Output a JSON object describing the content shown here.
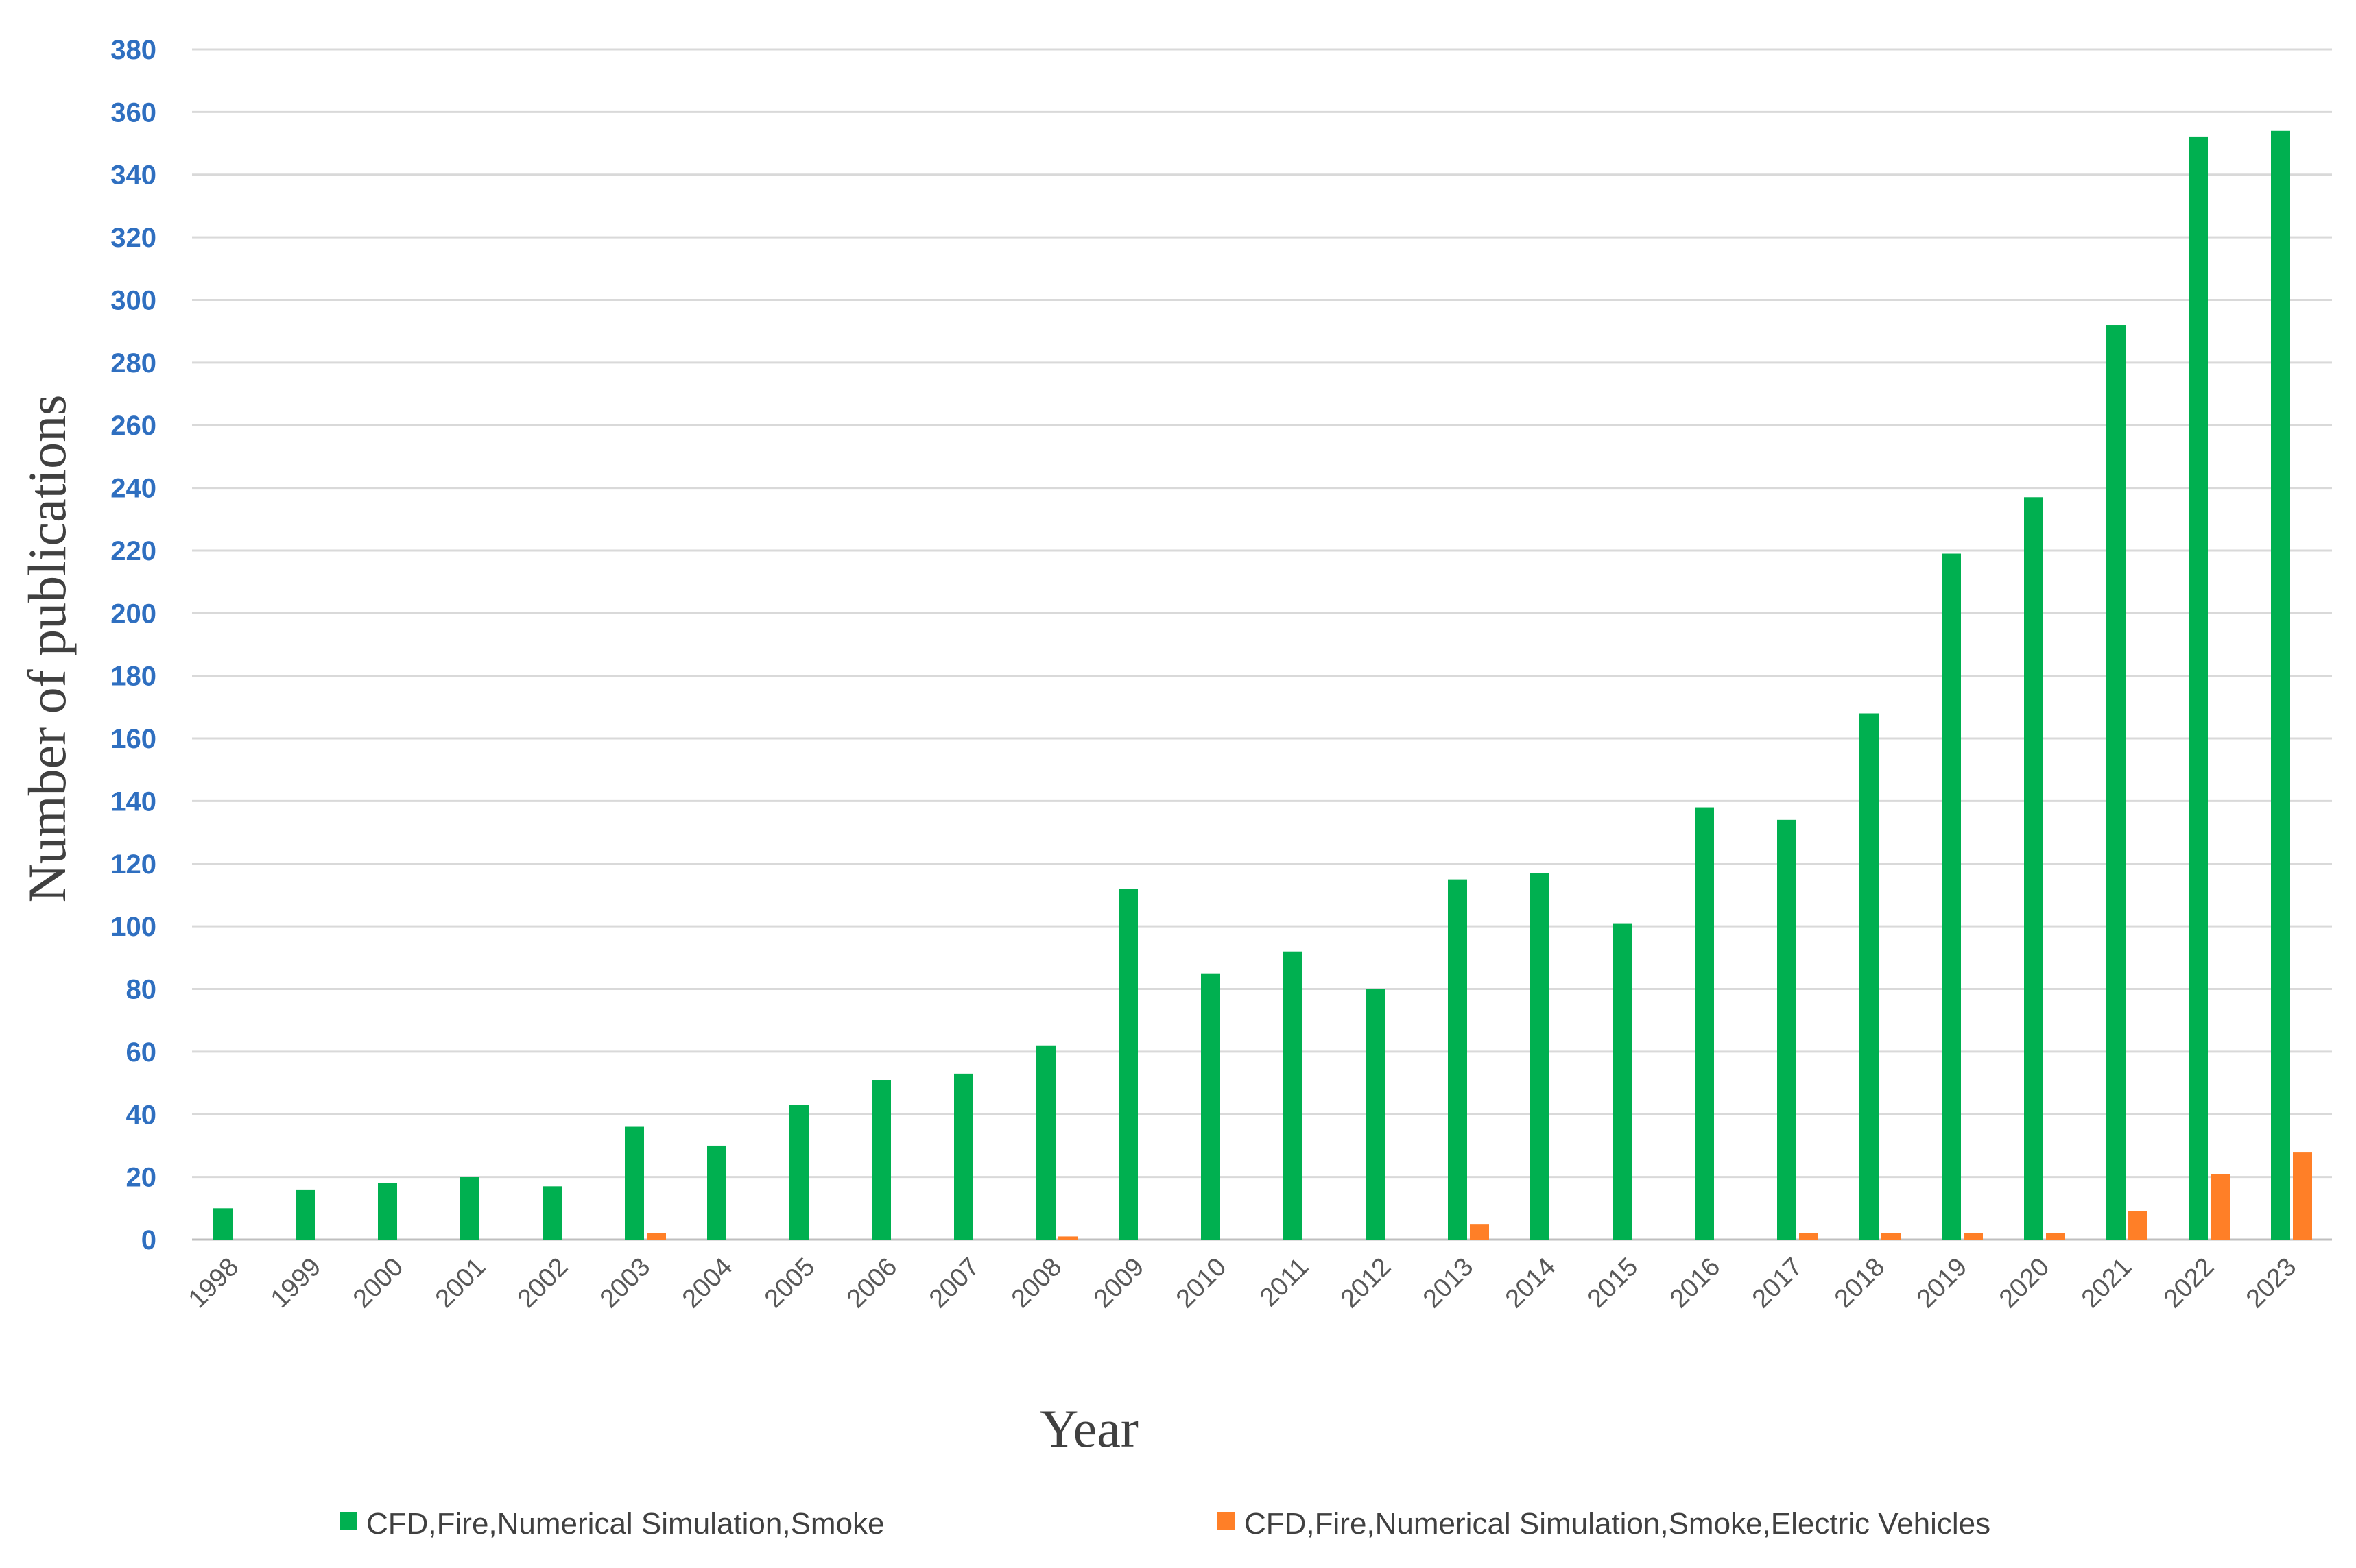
{
  "chart_data": {
    "type": "bar",
    "xlabel": "Year",
    "ylabel": "Number of publications",
    "ylim": [
      0,
      380
    ],
    "y_ticks": [
      0,
      20,
      40,
      60,
      80,
      100,
      120,
      140,
      160,
      180,
      200,
      220,
      240,
      260,
      280,
      300,
      320,
      340,
      360,
      380
    ],
    "grid": true,
    "legend_position": "bottom",
    "categories": [
      "1998",
      "1999",
      "2000",
      "2001",
      "2002",
      "2003",
      "2004",
      "2005",
      "2006",
      "2007",
      "2008",
      "2009",
      "2010",
      "2011",
      "2012",
      "2013",
      "2014",
      "2015",
      "2016",
      "2017",
      "2018",
      "2019",
      "2020",
      "2021",
      "2022",
      "2023"
    ],
    "series": [
      {
        "name": "CFD,Fire,Numerical Simulation,Smoke",
        "color": "#00b050",
        "values": [
          10,
          16,
          18,
          20,
          17,
          36,
          30,
          43,
          51,
          53,
          62,
          112,
          85,
          92,
          80,
          115,
          117,
          101,
          138,
          134,
          168,
          219,
          237,
          292,
          352,
          354
        ]
      },
      {
        "name": "CFD,Fire,Numerical Simulation,Smoke,Electric Vehicles",
        "color": "#ff7f27",
        "values": [
          0,
          0,
          0,
          0,
          0,
          2,
          0,
          0,
          0,
          0,
          1,
          0,
          0,
          0,
          0,
          5,
          0,
          0,
          0,
          2,
          2,
          2,
          2,
          9,
          21,
          28
        ]
      }
    ]
  }
}
